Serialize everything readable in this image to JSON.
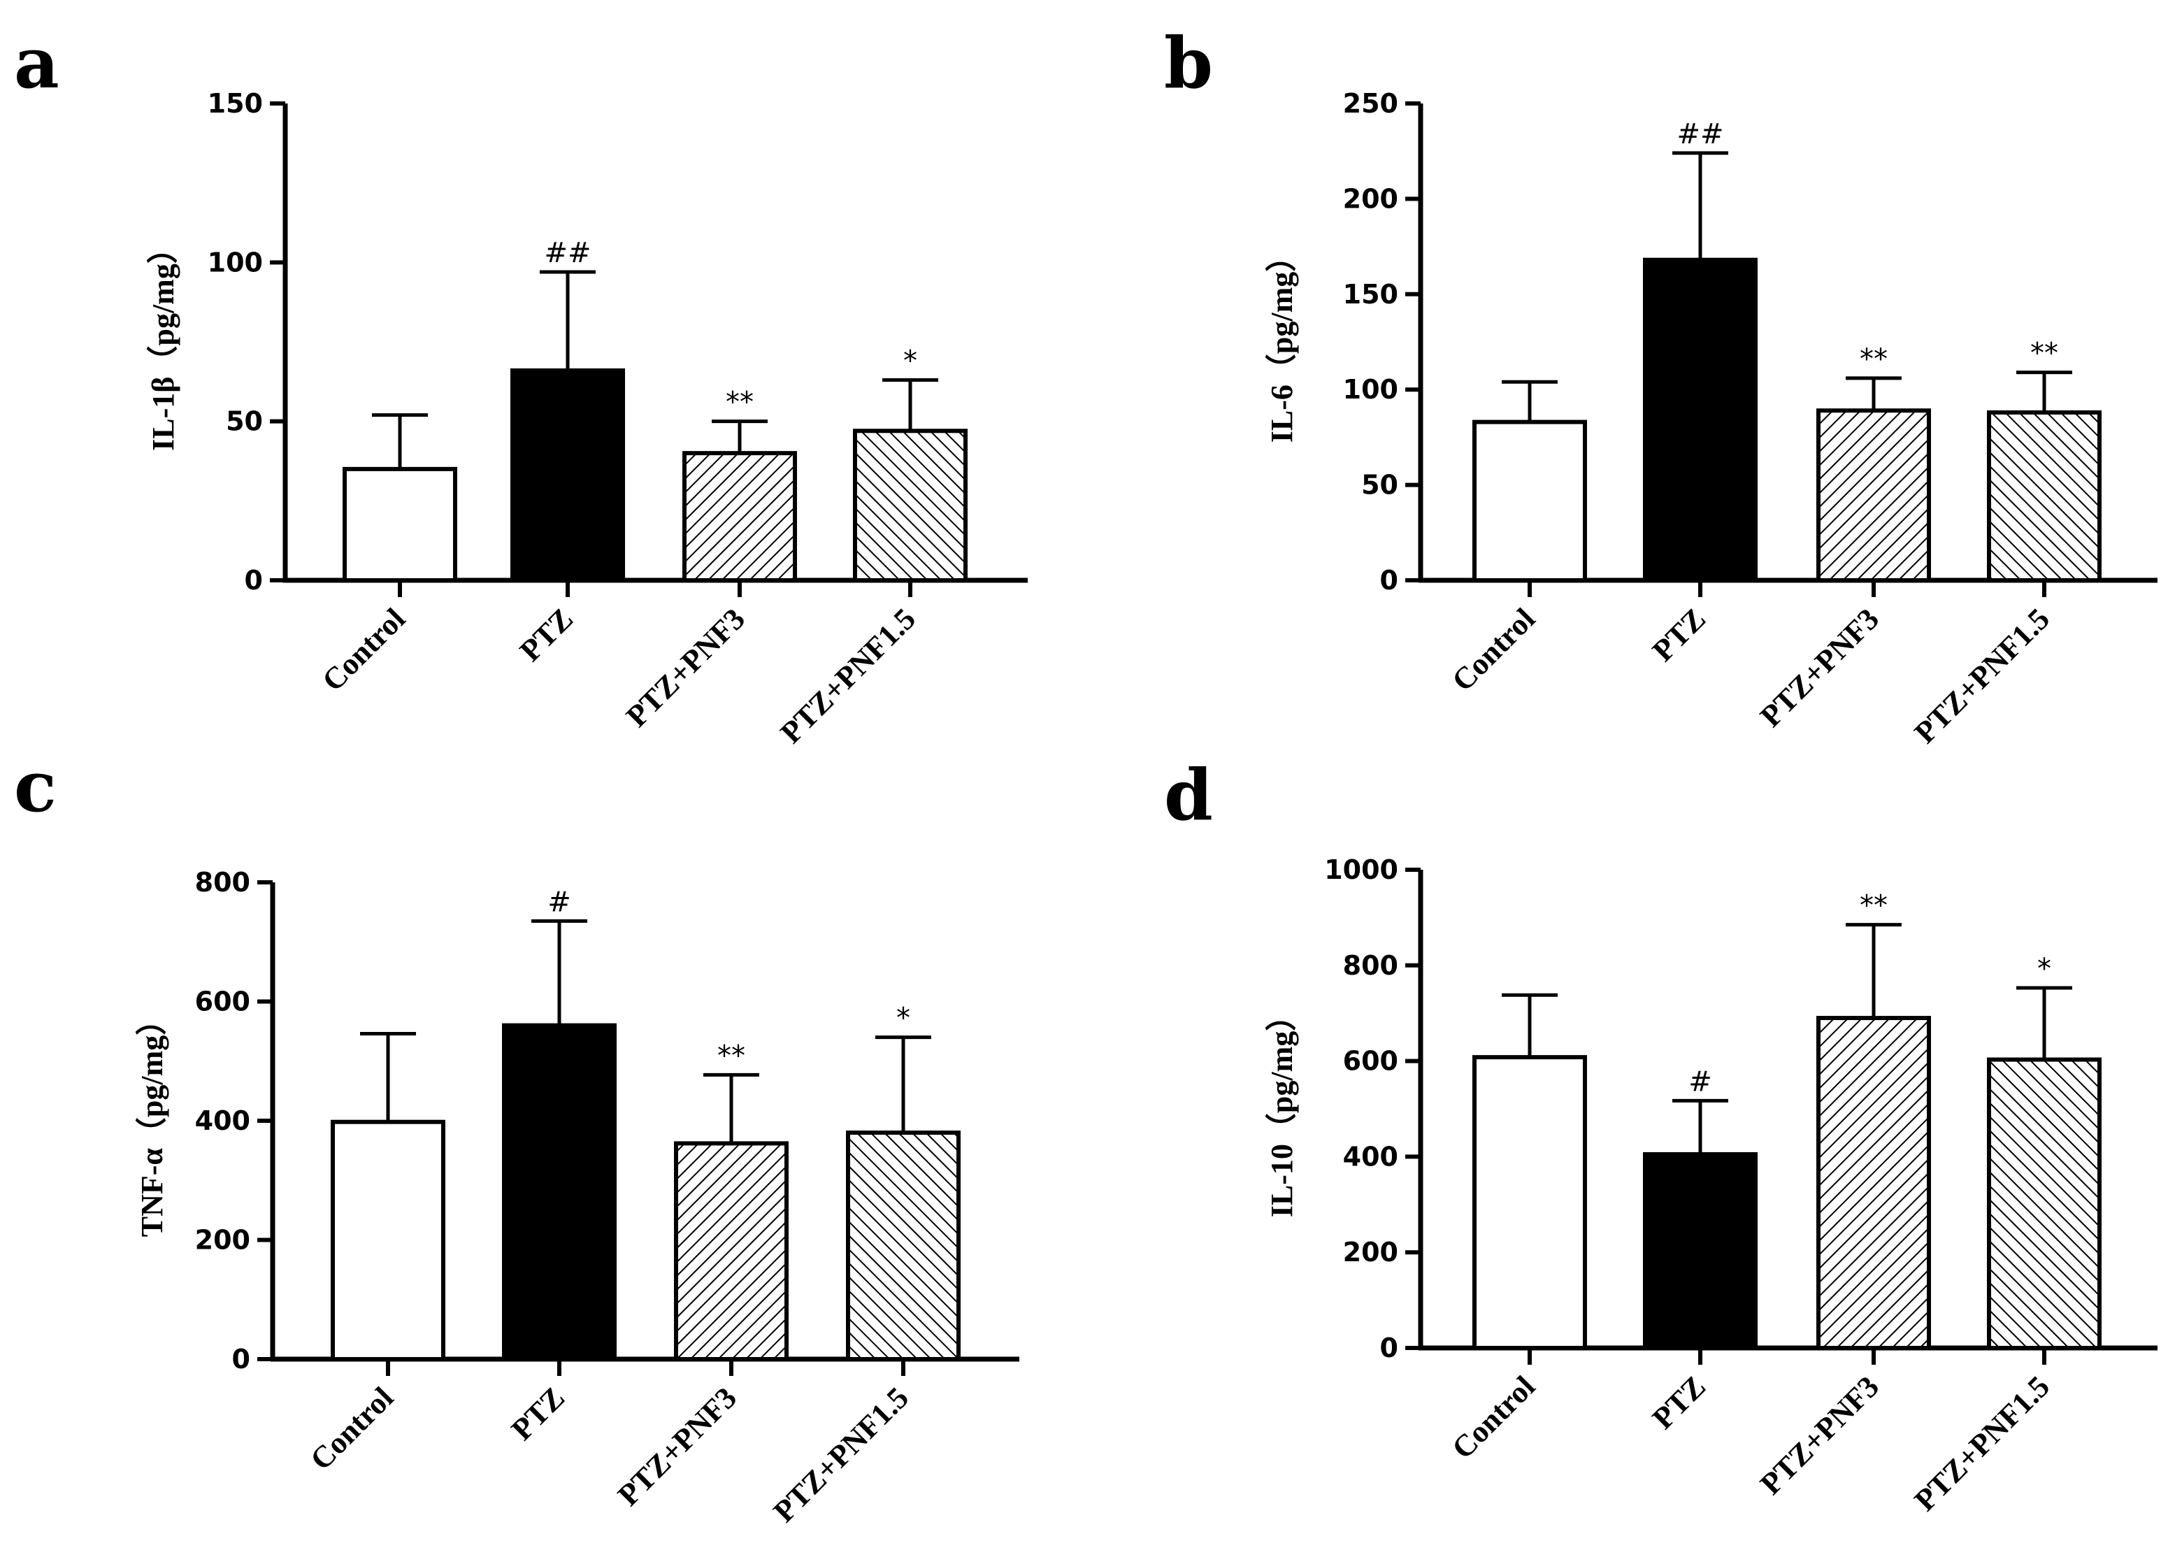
{
  "colors": {
    "axis": "#000000",
    "control_fill": "#ffffff",
    "ptz_fill": "#000000",
    "hatch": "#000000"
  },
  "chart_data": [
    {
      "panel": "a",
      "type": "bar",
      "ylabel": "IL-1β（pg/mg）",
      "ylim": [
        0,
        150
      ],
      "yticks": [
        0,
        50,
        100,
        150
      ],
      "categories": [
        "Control",
        "PTZ",
        "PTZ+PNF3",
        "PTZ+PNF1.5"
      ],
      "values": [
        35,
        66,
        40,
        47
      ],
      "errors": [
        17,
        31,
        10,
        16
      ],
      "significance": [
        "",
        "##",
        "**",
        "*"
      ],
      "fills": [
        "white",
        "black",
        "hatch-back",
        "hatch-fwd"
      ]
    },
    {
      "panel": "b",
      "type": "bar",
      "ylabel": "IL-6（pg/mg）",
      "ylim": [
        0,
        250
      ],
      "yticks": [
        0,
        50,
        100,
        150,
        200,
        250
      ],
      "categories": [
        "Control",
        "PTZ",
        "PTZ+PNF3",
        "PTZ+PNF1.5"
      ],
      "values": [
        83,
        168,
        89,
        88
      ],
      "errors": [
        21,
        56,
        17,
        21
      ],
      "significance": [
        "",
        "##",
        "**",
        "**"
      ],
      "fills": [
        "white",
        "black",
        "hatch-back",
        "hatch-fwd"
      ]
    },
    {
      "panel": "c",
      "type": "bar",
      "ylabel": "TNF-α（pg/mg）",
      "ylim": [
        0,
        800
      ],
      "yticks": [
        0,
        200,
        400,
        600,
        800
      ],
      "categories": [
        "Control",
        "PTZ",
        "PTZ+PNF3",
        "PTZ+PNF1.5"
      ],
      "values": [
        398,
        560,
        362,
        380
      ],
      "errors": [
        148,
        175,
        115,
        160
      ],
      "significance": [
        "",
        "#",
        "**",
        "*"
      ],
      "fills": [
        "white",
        "black",
        "hatch-back",
        "hatch-fwd"
      ]
    },
    {
      "panel": "d",
      "type": "bar",
      "ylabel": "IL-10（pg/mg）",
      "ylim": [
        0,
        1000
      ],
      "yticks": [
        0,
        200,
        400,
        600,
        800,
        1000
      ],
      "categories": [
        "Control",
        "PTZ",
        "PTZ+PNF3",
        "PTZ+PNF1.5"
      ],
      "values": [
        608,
        405,
        690,
        603
      ],
      "errors": [
        130,
        112,
        195,
        150
      ],
      "significance": [
        "",
        "#",
        "**",
        "*"
      ],
      "fills": [
        "white",
        "black",
        "hatch-back",
        "hatch-fwd"
      ]
    }
  ]
}
